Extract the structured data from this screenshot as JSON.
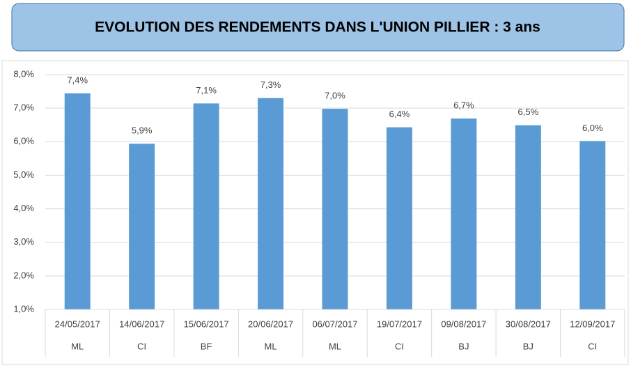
{
  "chart_data": {
    "type": "bar",
    "title": "EVOLUTION DES RENDEMENTS DANS L'UNION PILLIER : 3 ans",
    "categories": [
      "24/05/2017",
      "14/06/2017",
      "15/06/2017",
      "20/06/2017",
      "06/07/2017",
      "19/07/2017",
      "09/08/2017",
      "30/08/2017",
      "12/09/2017"
    ],
    "category_groups": [
      "ML",
      "CI",
      "BF",
      "ML",
      "ML",
      "CI",
      "BJ",
      "BJ",
      "CI"
    ],
    "values": [
      7.44,
      5.94,
      7.14,
      7.3,
      6.98,
      6.43,
      6.69,
      6.49,
      6.02
    ],
    "value_labels": [
      "7,4%",
      "5,9%",
      "7,1%",
      "7,3%",
      "7,0%",
      "6,4%",
      "6,7%",
      "6,5%",
      "6,0%"
    ],
    "color": "#5b9bd5",
    "ylim": [
      1,
      8
    ],
    "yticks": [
      {
        "value": 1,
        "label": "1,0%"
      },
      {
        "value": 2,
        "label": "2,0%"
      },
      {
        "value": 3,
        "label": "3,0%"
      },
      {
        "value": 4,
        "label": "4,0%"
      },
      {
        "value": 5,
        "label": "5,0%"
      },
      {
        "value": 6,
        "label": "6,0%"
      },
      {
        "value": 7,
        "label": "7,0%"
      },
      {
        "value": 8,
        "label": "8,0%"
      }
    ],
    "grid": true
  }
}
